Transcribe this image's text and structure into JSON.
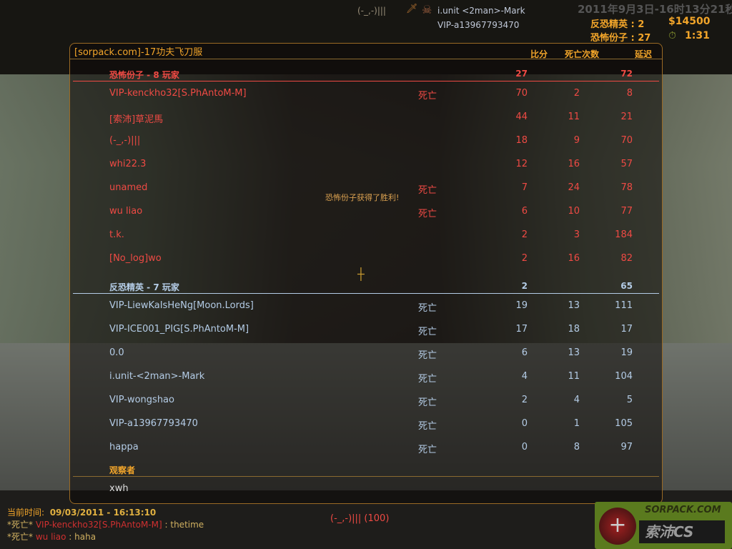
{
  "hud": {
    "datetime": "2011年9月3日-16时13分21秒",
    "ct_score": "反恐精英 : 2",
    "t_score": "恐怖份子 : 27",
    "money": "$14500",
    "timer": "1:31",
    "timer_icon": "stopwatch-icon"
  },
  "scoreboard": {
    "server_title": "[sorpack.com]-17功夫飞刀服",
    "columns": {
      "score": "比分",
      "deaths": "死亡次数",
      "ping": "延迟"
    },
    "teams": [
      {
        "key": "t",
        "header": "恐怖份子   -   8 玩家",
        "score": "27",
        "deaths": "",
        "ping": "72",
        "color": "#ef4a44",
        "players": [
          {
            "name": "VIP-kenckho32[S.PhAntoM-M]",
            "status": "死亡",
            "score": "70",
            "deaths": "2",
            "ping": "8"
          },
          {
            "name": "[索沛]草泥馬",
            "status": "",
            "score": "44",
            "deaths": "11",
            "ping": "21"
          },
          {
            "name": "(-_,-)|||",
            "status": "",
            "score": "18",
            "deaths": "9",
            "ping": "70"
          },
          {
            "name": "whi22.3",
            "status": "",
            "score": "12",
            "deaths": "16",
            "ping": "57"
          },
          {
            "name": "unamed",
            "status": "死亡",
            "score": "7",
            "deaths": "24",
            "ping": "78"
          },
          {
            "name": "wu liao",
            "status": "死亡",
            "score": "6",
            "deaths": "10",
            "ping": "77"
          },
          {
            "name": "t.k.",
            "status": "",
            "score": "2",
            "deaths": "3",
            "ping": "184"
          },
          {
            "name": "[No_log]wo",
            "status": "",
            "score": "2",
            "deaths": "16",
            "ping": "82"
          }
        ]
      },
      {
        "key": "ct",
        "header": "反恐精英   -   7 玩家",
        "score": "2",
        "deaths": "",
        "ping": "65",
        "color": "#b4cce6",
        "players": [
          {
            "name": "VIP-LiewKaIsHeNg[Moon.Lords]",
            "status": "死亡",
            "score": "19",
            "deaths": "13",
            "ping": "111"
          },
          {
            "name": "VIP-ICE001_PIG[S.PhAntoM-M]",
            "status": "死亡",
            "score": "17",
            "deaths": "18",
            "ping": "17"
          },
          {
            "name": "0.0",
            "status": "死亡",
            "score": "6",
            "deaths": "13",
            "ping": "19"
          },
          {
            "name": "i.unit-<2man>-Mark",
            "status": "死亡",
            "score": "4",
            "deaths": "11",
            "ping": "104"
          },
          {
            "name": "VIP-wongshao",
            "status": "死亡",
            "score": "2",
            "deaths": "4",
            "ping": "5"
          },
          {
            "name": "VIP-a13967793470",
            "status": "死亡",
            "score": "0",
            "deaths": "1",
            "ping": "105"
          },
          {
            "name": "happa",
            "status": "死亡",
            "score": "0",
            "deaths": "8",
            "ping": "97"
          }
        ]
      }
    ],
    "spectators": {
      "header": "观察者",
      "players": [
        "xwh"
      ]
    }
  },
  "center_message": "恐怖份子获得了胜利!",
  "killfeed": [
    {
      "killer": "(-_,-)|||",
      "victim": "i.unit <2man>-Mark"
    },
    {
      "killer": "",
      "victim": "VIP-a13967793470"
    }
  ],
  "chat": {
    "time_label": "当前时间:",
    "time_value": "09/03/2011 - 16:13:10",
    "lines": [
      {
        "prefix": "*死亡*",
        "name": "VIP-kenckho32[S.PhAntoM-M]",
        "msg": " : thetime"
      },
      {
        "prefix": "*死亡*",
        "name": "wu liao",
        "msg": " : haha"
      }
    ]
  },
  "spectating": "(-_,-)||| (100)",
  "logo": {
    "text1": "SORPACK.COM",
    "text2": "索沛CS"
  }
}
